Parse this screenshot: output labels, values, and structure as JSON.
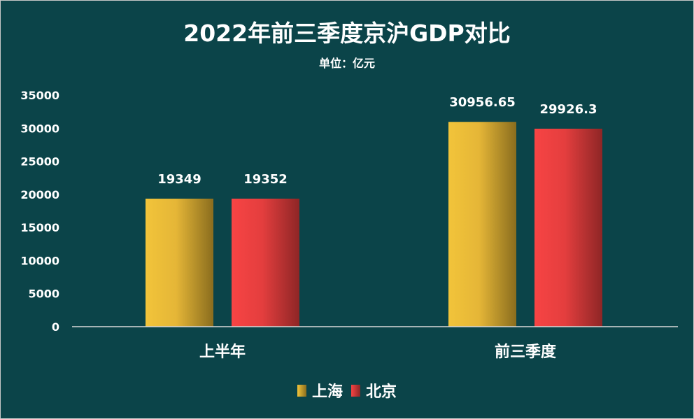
{
  "chart_data": {
    "type": "bar",
    "title": "2022年前三季度京沪GDP对比",
    "subtitle": "单位：亿元",
    "categories": [
      "上半年",
      "前三季度"
    ],
    "series": [
      {
        "name": "上海",
        "values": [
          19349,
          30956.65
        ],
        "labels": [
          "19349",
          "30956.65"
        ],
        "color": "#f2c43a",
        "color_dark": "#8a6d1e"
      },
      {
        "name": "北京",
        "values": [
          19352,
          29926.3
        ],
        "labels": [
          "19352",
          "29926.3"
        ],
        "color": "#f74444",
        "color_dark": "#8e2626"
      }
    ],
    "ylim": [
      0,
      35000
    ],
    "yticks": [
      "0",
      "5000",
      "10000",
      "15000",
      "20000",
      "25000",
      "30000",
      "35000"
    ],
    "grid": false,
    "legend": "bottom",
    "background": "#0b4449"
  }
}
